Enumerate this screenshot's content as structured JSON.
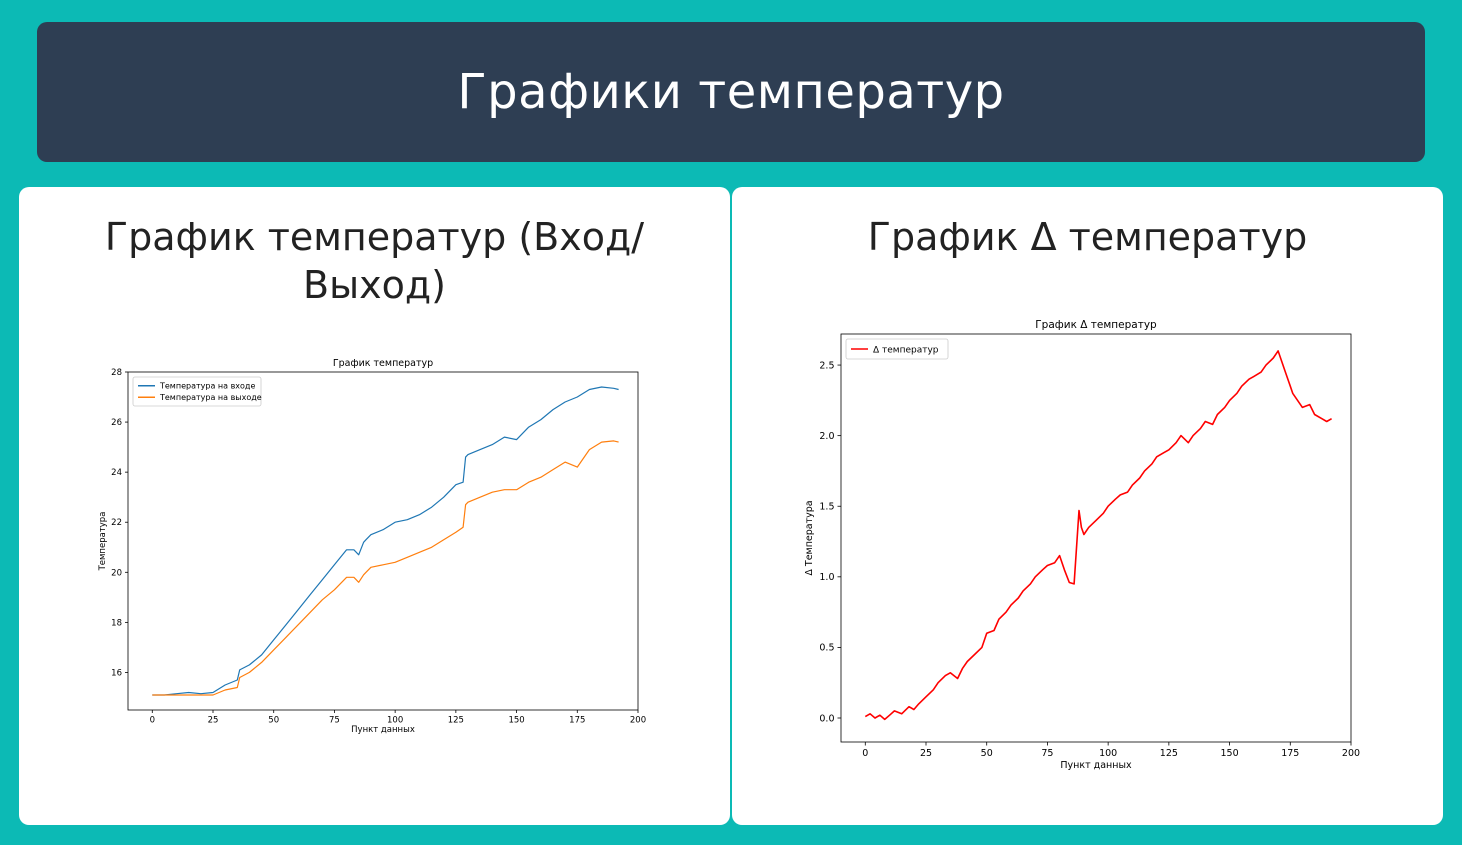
{
  "header": {
    "title": "Графики температур"
  },
  "cards": [
    {
      "title": "График температур (Вход/Выход)"
    },
    {
      "title": "График Δ температур"
    }
  ],
  "chart_data": [
    {
      "type": "line",
      "title": "График температур",
      "xlabel": "Пункт данных",
      "ylabel": "Температура",
      "xlim": [
        -10,
        200
      ],
      "ylim": [
        14.5,
        28
      ],
      "xticks": [
        0,
        25,
        50,
        75,
        100,
        125,
        150,
        175,
        200
      ],
      "yticks": [
        16,
        18,
        20,
        22,
        24,
        26,
        28
      ],
      "grid": false,
      "legend": "top-left",
      "series": [
        {
          "name": "Температура на входе",
          "color": "#1f77b4",
          "x": [
            0,
            5,
            10,
            15,
            20,
            25,
            30,
            35,
            36,
            40,
            45,
            50,
            55,
            60,
            65,
            70,
            75,
            80,
            83,
            85,
            87,
            88,
            90,
            95,
            100,
            105,
            110,
            115,
            120,
            125,
            128,
            129,
            130,
            135,
            140,
            145,
            150,
            155,
            160,
            165,
            170,
            175,
            180,
            185,
            190,
            192
          ],
          "y": [
            15.1,
            15.1,
            15.15,
            15.2,
            15.15,
            15.2,
            15.5,
            15.7,
            16.1,
            16.3,
            16.7,
            17.3,
            17.9,
            18.5,
            19.1,
            19.7,
            20.3,
            20.9,
            20.9,
            20.7,
            21.2,
            21.3,
            21.5,
            21.7,
            22.0,
            22.1,
            22.3,
            22.6,
            23.0,
            23.5,
            23.6,
            24.6,
            24.7,
            24.9,
            25.1,
            25.4,
            25.3,
            25.8,
            26.1,
            26.5,
            26.8,
            27.0,
            27.3,
            27.4,
            27.35,
            27.3
          ]
        },
        {
          "name": "Температура на выходе",
          "color": "#ff7f0e",
          "x": [
            0,
            5,
            10,
            15,
            20,
            25,
            30,
            35,
            36,
            40,
            45,
            50,
            55,
            60,
            65,
            70,
            75,
            80,
            83,
            85,
            87,
            88,
            90,
            95,
            100,
            105,
            110,
            115,
            120,
            125,
            128,
            129,
            130,
            135,
            140,
            145,
            150,
            155,
            160,
            165,
            170,
            175,
            180,
            185,
            190,
            192
          ],
          "y": [
            15.1,
            15.1,
            15.1,
            15.1,
            15.1,
            15.1,
            15.3,
            15.4,
            15.8,
            16.0,
            16.4,
            16.9,
            17.4,
            17.9,
            18.4,
            18.9,
            19.3,
            19.8,
            19.8,
            19.6,
            19.9,
            20.0,
            20.2,
            20.3,
            20.4,
            20.6,
            20.8,
            21.0,
            21.3,
            21.6,
            21.8,
            22.7,
            22.8,
            23.0,
            23.2,
            23.3,
            23.3,
            23.6,
            23.8,
            24.1,
            24.4,
            24.2,
            24.9,
            25.2,
            25.25,
            25.2
          ]
        }
      ]
    },
    {
      "type": "line",
      "title": "График Δ температур",
      "xlabel": "Пункт данных",
      "ylabel": "Δ Температура",
      "xlim": [
        -10,
        200
      ],
      "ylim": [
        -0.17,
        2.72
      ],
      "xticks": [
        0,
        25,
        50,
        75,
        100,
        125,
        150,
        175,
        200
      ],
      "yticks": [
        0.0,
        0.5,
        1.0,
        1.5,
        2.0,
        2.5
      ],
      "ytick_labels": [
        "0.0",
        "0.5",
        "1.0",
        "1.5",
        "2.0",
        "2.5"
      ],
      "grid": false,
      "legend": "top-left",
      "series": [
        {
          "name": "Δ температур",
          "color": "#ff0000",
          "x": [
            0,
            2,
            4,
            6,
            8,
            10,
            12,
            15,
            18,
            20,
            22,
            25,
            28,
            30,
            33,
            35,
            38,
            40,
            42,
            45,
            48,
            50,
            53,
            55,
            58,
            60,
            63,
            65,
            68,
            70,
            73,
            75,
            78,
            80,
            82,
            84,
            86,
            88,
            89,
            90,
            92,
            95,
            98,
            100,
            103,
            105,
            108,
            110,
            113,
            115,
            118,
            120,
            123,
            125,
            128,
            130,
            133,
            135,
            138,
            140,
            143,
            145,
            148,
            150,
            153,
            155,
            158,
            160,
            163,
            165,
            168,
            170,
            173,
            175,
            176,
            178,
            180,
            183,
            185,
            188,
            190,
            192
          ],
          "y": [
            0.01,
            0.03,
            0.0,
            0.02,
            -0.01,
            0.02,
            0.05,
            0.03,
            0.08,
            0.06,
            0.1,
            0.15,
            0.2,
            0.25,
            0.3,
            0.32,
            0.28,
            0.35,
            0.4,
            0.45,
            0.5,
            0.6,
            0.62,
            0.7,
            0.75,
            0.8,
            0.85,
            0.9,
            0.95,
            1.0,
            1.05,
            1.08,
            1.1,
            1.15,
            1.05,
            0.96,
            0.95,
            1.47,
            1.35,
            1.3,
            1.35,
            1.4,
            1.45,
            1.5,
            1.55,
            1.58,
            1.6,
            1.65,
            1.7,
            1.75,
            1.8,
            1.85,
            1.88,
            1.9,
            1.95,
            2.0,
            1.95,
            2.0,
            2.05,
            2.1,
            2.08,
            2.15,
            2.2,
            2.25,
            2.3,
            2.35,
            2.4,
            2.42,
            2.45,
            2.5,
            2.55,
            2.6,
            2.45,
            2.35,
            2.3,
            2.25,
            2.2,
            2.22,
            2.15,
            2.12,
            2.1,
            2.12
          ]
        }
      ]
    }
  ]
}
